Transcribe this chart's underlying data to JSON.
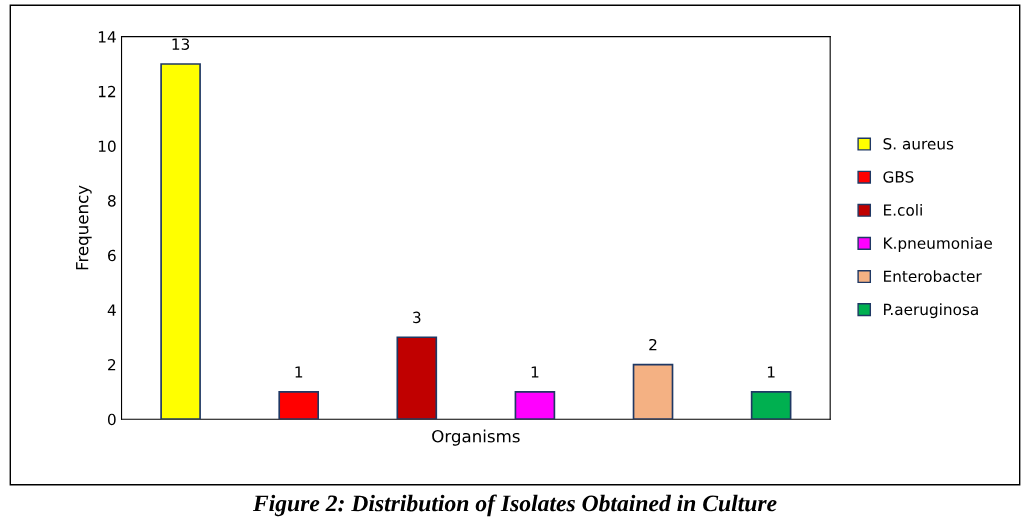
{
  "chart_data": {
    "type": "bar",
    "xlabel": "Organisms",
    "ylabel": "Frequency",
    "categories": [
      null,
      null,
      null,
      null,
      null,
      null
    ],
    "series": [
      {
        "name": "S. aureus",
        "color": "#ffff00",
        "values": [
          13,
          null,
          null,
          null,
          null,
          null
        ]
      },
      {
        "name": "GBS",
        "color": "#ff0000",
        "values": [
          null,
          1,
          null,
          null,
          null,
          null
        ]
      },
      {
        "name": "E.coli",
        "color": "#c00000",
        "values": [
          null,
          null,
          3,
          null,
          null,
          null
        ]
      },
      {
        "name": "K.pneumoniae",
        "color": "#ff00ff",
        "values": [
          null,
          null,
          null,
          1,
          null,
          null
        ]
      },
      {
        "name": "Enterobacter",
        "color": "#f4b183",
        "values": [
          null,
          null,
          null,
          null,
          2,
          null
        ]
      },
      {
        "name": "P.aeruginosa",
        "color": "#00b050",
        "values": [
          null,
          null,
          null,
          null,
          null,
          1
        ]
      }
    ],
    "ylim": [
      0,
      14
    ],
    "yticks": [
      0,
      2,
      4,
      6,
      8,
      10,
      12,
      14
    ],
    "data_labels": true,
    "legend": "right",
    "grid": false,
    "annotations": [
      "Figure 2: Distribution of Isolates Obtained in Culture"
    ]
  }
}
